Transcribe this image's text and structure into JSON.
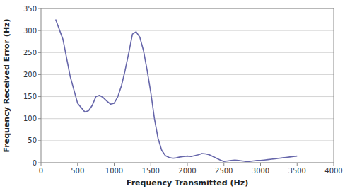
{
  "chart_data": {
    "type": "line",
    "x": [
      200,
      300,
      400,
      500,
      600,
      650,
      700,
      750,
      800,
      850,
      900,
      950,
      1000,
      1050,
      1100,
      1150,
      1200,
      1250,
      1300,
      1350,
      1400,
      1450,
      1500,
      1550,
      1600,
      1650,
      1700,
      1750,
      1800,
      1850,
      1900,
      1950,
      2000,
      2050,
      2100,
      2150,
      2200,
      2250,
      2300,
      2350,
      2400,
      2450,
      2500,
      2550,
      2600,
      2650,
      2700,
      2750,
      2800,
      2850,
      2900,
      2950,
      3000,
      3050,
      3100,
      3150,
      3200,
      3250,
      3300,
      3350,
      3400,
      3450,
      3500
    ],
    "values": [
      325,
      280,
      195,
      135,
      115,
      118,
      130,
      150,
      153,
      148,
      140,
      133,
      135,
      150,
      175,
      210,
      250,
      292,
      297,
      285,
      255,
      210,
      160,
      100,
      55,
      28,
      16,
      12,
      10,
      11,
      13,
      14,
      15,
      14,
      16,
      18,
      21,
      20,
      18,
      14,
      10,
      6,
      3,
      4,
      5,
      6,
      5,
      4,
      3,
      3,
      4,
      5,
      5,
      6,
      7,
      8,
      9,
      10,
      11,
      12,
      13,
      14,
      15
    ],
    "color": "#6666aa",
    "xlabel": "Frequency Transmitted (Hz)",
    "ylabel": "Frequency Received Error (Hz)",
    "xlim": [
      0,
      4000
    ],
    "ylim": [
      0,
      350
    ],
    "xticks": [
      0,
      500,
      1000,
      1500,
      2000,
      2500,
      3000,
      3500,
      4000
    ],
    "yticks": [
      0,
      50,
      100,
      150,
      200,
      250,
      300,
      350
    ],
    "grid": true
  }
}
